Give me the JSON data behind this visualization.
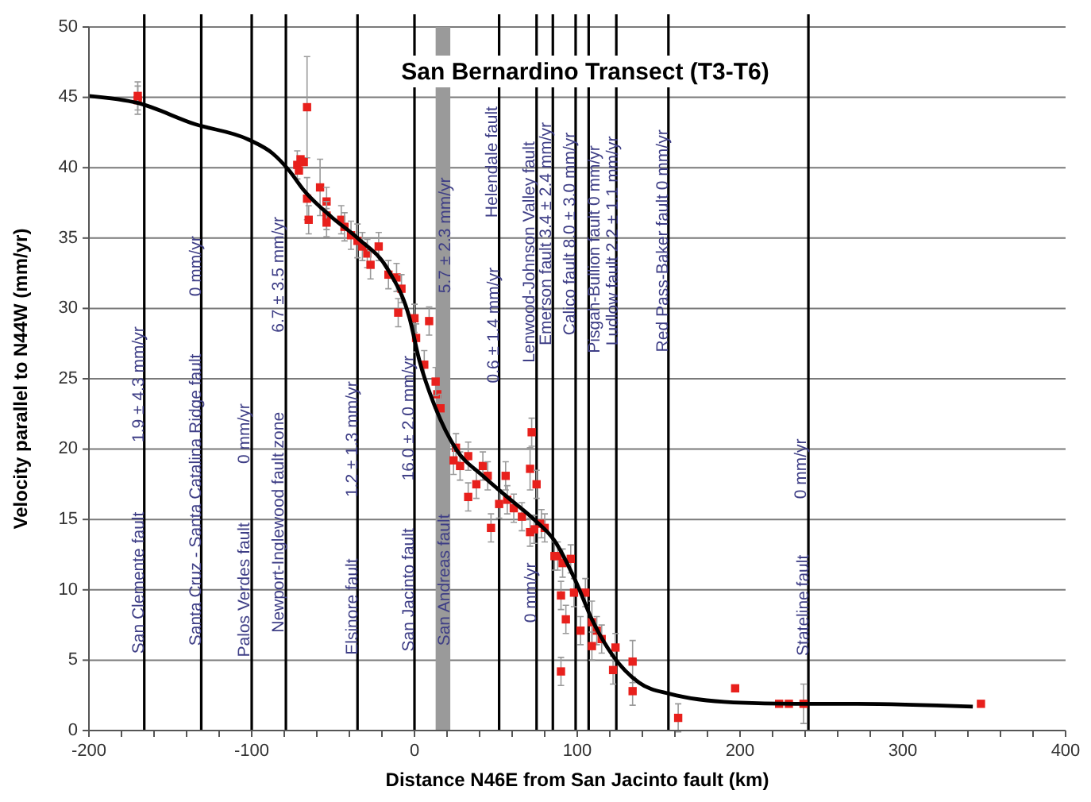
{
  "chart_data": {
    "type": "scatter",
    "title": "San Bernardino Transect (T3-T6)",
    "xlabel": "Distance N46E from San Jacinto fault (km)",
    "ylabel": "Velocity parallel to N44W (mm/yr)",
    "xlim": [
      -200,
      400
    ],
    "xticks": [
      -200,
      {
        "value": -180,
        "label": null
      },
      {
        "value": -160,
        "label": null
      },
      {
        "value": -140,
        "label": null
      },
      {
        "value": -120,
        "label": null
      },
      -100,
      {
        "value": -80,
        "label": null
      },
      {
        "value": -60,
        "label": null
      },
      {
        "value": -40,
        "label": null
      },
      {
        "value": -20,
        "label": null
      },
      0,
      {
        "value": 20,
        "label": null
      },
      {
        "value": 40,
        "label": null
      },
      {
        "value": 60,
        "label": null
      },
      {
        "value": 80,
        "label": null
      },
      100,
      {
        "value": 120,
        "label": null
      },
      {
        "value": 140,
        "label": null
      },
      {
        "value": 160,
        "label": null
      },
      {
        "value": 180,
        "label": null
      },
      200,
      {
        "value": 220,
        "label": null
      },
      {
        "value": 240,
        "label": null
      },
      {
        "value": 260,
        "label": null
      },
      {
        "value": 280,
        "label": null
      },
      300,
      {
        "value": 320,
        "label": null
      },
      {
        "value": 340,
        "label": null
      },
      {
        "value": 360,
        "label": null
      },
      {
        "value": 380,
        "label": null
      },
      400
    ],
    "ylim": [
      0,
      50
    ],
    "yticks": [
      0,
      5,
      10,
      15,
      20,
      25,
      30,
      35,
      40,
      45,
      50
    ],
    "grid": "y",
    "marker": "square",
    "series": [
      {
        "color": "#e8201c",
        "x": [
          -170,
          -170,
          -66,
          -72,
          -70,
          -68,
          -71,
          -66,
          -65,
          -58,
          -54,
          -54,
          -54,
          -45,
          -43,
          -39,
          -35,
          -32,
          -29,
          -22,
          -27,
          -16,
          -11,
          -8,
          -10,
          9,
          0,
          1,
          6,
          14,
          16,
          13,
          25.5,
          24,
          28,
          33,
          33,
          38,
          42,
          45,
          47,
          52,
          57,
          61,
          66,
          56,
          72,
          71,
          75,
          73.5,
          78,
          86,
          90,
          71,
          80,
          88,
          91,
          96,
          90,
          93,
          98,
          102,
          105,
          109,
          112,
          115,
          109,
          122,
          123.5,
          134,
          134,
          162,
          197,
          224,
          230,
          239,
          348
        ],
        "values": [
          44.8,
          45.1,
          44.3,
          40.2,
          40.6,
          40.4,
          39.8,
          37.8,
          36.3,
          38.6,
          37.6,
          36.6,
          36.1,
          36.3,
          35.8,
          35.2,
          34.8,
          34.4,
          33.9,
          34.4,
          33.1,
          32.4,
          32.2,
          31.4,
          29.7,
          29.1,
          29.3,
          27.9,
          26.0,
          23.9,
          22.9,
          24.8,
          20.1,
          19.2,
          18.8,
          19.5,
          16.6,
          17.5,
          18.8,
          18.1,
          14.4,
          16.1,
          16.4,
          15.8,
          15.2,
          18.1,
          21.2,
          18.6,
          17.5,
          14.3,
          14.7,
          12.4,
          4.2,
          14.1,
          14.4,
          12.4,
          11.9,
          12.2,
          9.6,
          7.9,
          9.8,
          7.1,
          9.8,
          7.7,
          7.1,
          6.5,
          6.0,
          4.3,
          5.9,
          4.9,
          2.8,
          0.9,
          3.0,
          1.9,
          1.9,
          1.9,
          1.9
        ],
        "errors": [
          1,
          1,
          3.6,
          1,
          null,
          null,
          null,
          1.5,
          1,
          2,
          1,
          1,
          1,
          1,
          1,
          1,
          1.2,
          1,
          1,
          1,
          1,
          1,
          1,
          1,
          1,
          1,
          1,
          1,
          1,
          1,
          1,
          1,
          1,
          1,
          1,
          1,
          1,
          1,
          1,
          1,
          1,
          1,
          1,
          1,
          1,
          1,
          1,
          1.5,
          1,
          1,
          1,
          1,
          1,
          1,
          1,
          1,
          1,
          1,
          1,
          1,
          1,
          1,
          1,
          1.5,
          1,
          1,
          1,
          1,
          1,
          1.5,
          1,
          1,
          null,
          null,
          null,
          1.4,
          null
        ]
      },
      {
        "type": "line",
        "color": "#000000",
        "marker": "none",
        "x": [
          -200,
          -170,
          -135,
          -102,
          -87,
          -77,
          -68,
          -51,
          -35,
          -16,
          -3,
          3,
          13,
          25.5,
          42,
          57,
          73.5,
          86,
          99.5,
          109,
          122,
          138,
          157,
          196,
          234,
          272,
          343
        ],
        "values": [
          45.1,
          44.6,
          43.1,
          42.0,
          41.0,
          39.8,
          38.4,
          36.5,
          35.0,
          32.7,
          29.3,
          26.3,
          22.9,
          20.0,
          18.1,
          16.6,
          15.0,
          13.5,
          10.5,
          7.9,
          5.3,
          3.4,
          2.6,
          2.0,
          1.9,
          1.9,
          1.7
        ]
      }
    ],
    "ref_lines": [
      {
        "axis": "x",
        "value": -166,
        "color": "#000000"
      },
      {
        "axis": "x",
        "value": -131,
        "color": "#000000"
      },
      {
        "axis": "x",
        "value": -100,
        "color": "#000000"
      },
      {
        "axis": "x",
        "value": -79,
        "color": "#000000"
      },
      {
        "axis": "x",
        "value": -35,
        "color": "#000000"
      },
      {
        "axis": "x",
        "value": 0,
        "color": "#000000"
      },
      {
        "axis": "x",
        "value": 52,
        "color": "#000000"
      },
      {
        "axis": "x",
        "value": 75,
        "color": "#000000"
      },
      {
        "axis": "x",
        "value": 85,
        "color": "#000000"
      },
      {
        "axis": "x",
        "value": 99,
        "color": "#000000"
      },
      {
        "axis": "x",
        "value": 107,
        "color": "#000000"
      },
      {
        "axis": "x",
        "value": 124,
        "color": "#000000"
      },
      {
        "axis": "x",
        "value": 156,
        "color": "#000000"
      },
      {
        "axis": "x",
        "value": 242,
        "color": "#000000"
      }
    ],
    "bands": [
      {
        "axis": "x",
        "from": 13,
        "to": 22,
        "color": "#9a9a9a"
      }
    ],
    "annotations": [
      {
        "text": "San Clemente fault",
        "x": -169,
        "y": 10.5
      },
      {
        "text": "1.9 ± 4.3 mm/yr",
        "x": -169,
        "y": 24.6
      },
      {
        "text": "Santa Cruz - Santa Catalina Ridge fault",
        "x": -134,
        "y": 16.4
      },
      {
        "text": "0 mm/yr",
        "x": -134,
        "y": 33
      },
      {
        "text": "Palos Verdes fault",
        "x": -104,
        "y": 10
      },
      {
        "text": "0 mm/yr",
        "x": -104,
        "y": 21.1
      },
      {
        "text": "Newport-Inglewood fault zone",
        "x": -83,
        "y": 14.8
      },
      {
        "text": "6.7 ± 3.5 mm/yr",
        "x": -83,
        "y": 32.4
      },
      {
        "text": "Elsinore fault",
        "x": -38,
        "y": 8.8
      },
      {
        "text": "1.2 ± 1.3 mm/yr",
        "x": -38,
        "y": 20.7
      },
      {
        "text": "San Jacinto fault",
        "x": -3,
        "y": 10
      },
      {
        "text": "16.0 ± 2.0 mm/yr",
        "x": -3,
        "y": 22.2
      },
      {
        "text": "San Andreas fault",
        "x": 19,
        "y": 10.7
      },
      {
        "text": "5.7 ± 2.3 mm/yr",
        "x": 19,
        "y": 35.2
      },
      {
        "text": "0.6 ± 1.4 mm/yr",
        "x": 49,
        "y": 28.8
      },
      {
        "text": "Helendale fault",
        "x": 48,
        "y": 40.4
      },
      {
        "text": "0 mm/yr",
        "x": 72,
        "y": 9.8
      },
      {
        "text": "Lenwood-Johnson Valley fault",
        "x": 71,
        "y": 34
      },
      {
        "text": "Emerson fault 3.4 ± 2.4 mm/yr",
        "x": 81,
        "y": 35.3
      },
      {
        "text": "Calico fault    8.0 ± 3.0 mm/yr",
        "x": 96,
        "y": 35.3
      },
      {
        "text": "Pisgah-Bullion fault 0 mm/yr",
        "x": 111,
        "y": 34.2
      },
      {
        "text": "Ludlow fault 2.2 ± 1.1 mm/yr",
        "x": 122,
        "y": 34.8
      },
      {
        "text": "Red Pass-Baker fault   0 mm/yr",
        "x": 153,
        "y": 34.8
      },
      {
        "text": "0 mm/yr",
        "x": 238,
        "y": 18.6
      },
      {
        "text": "Stateline fault",
        "x": 239,
        "y": 8.9
      }
    ]
  }
}
